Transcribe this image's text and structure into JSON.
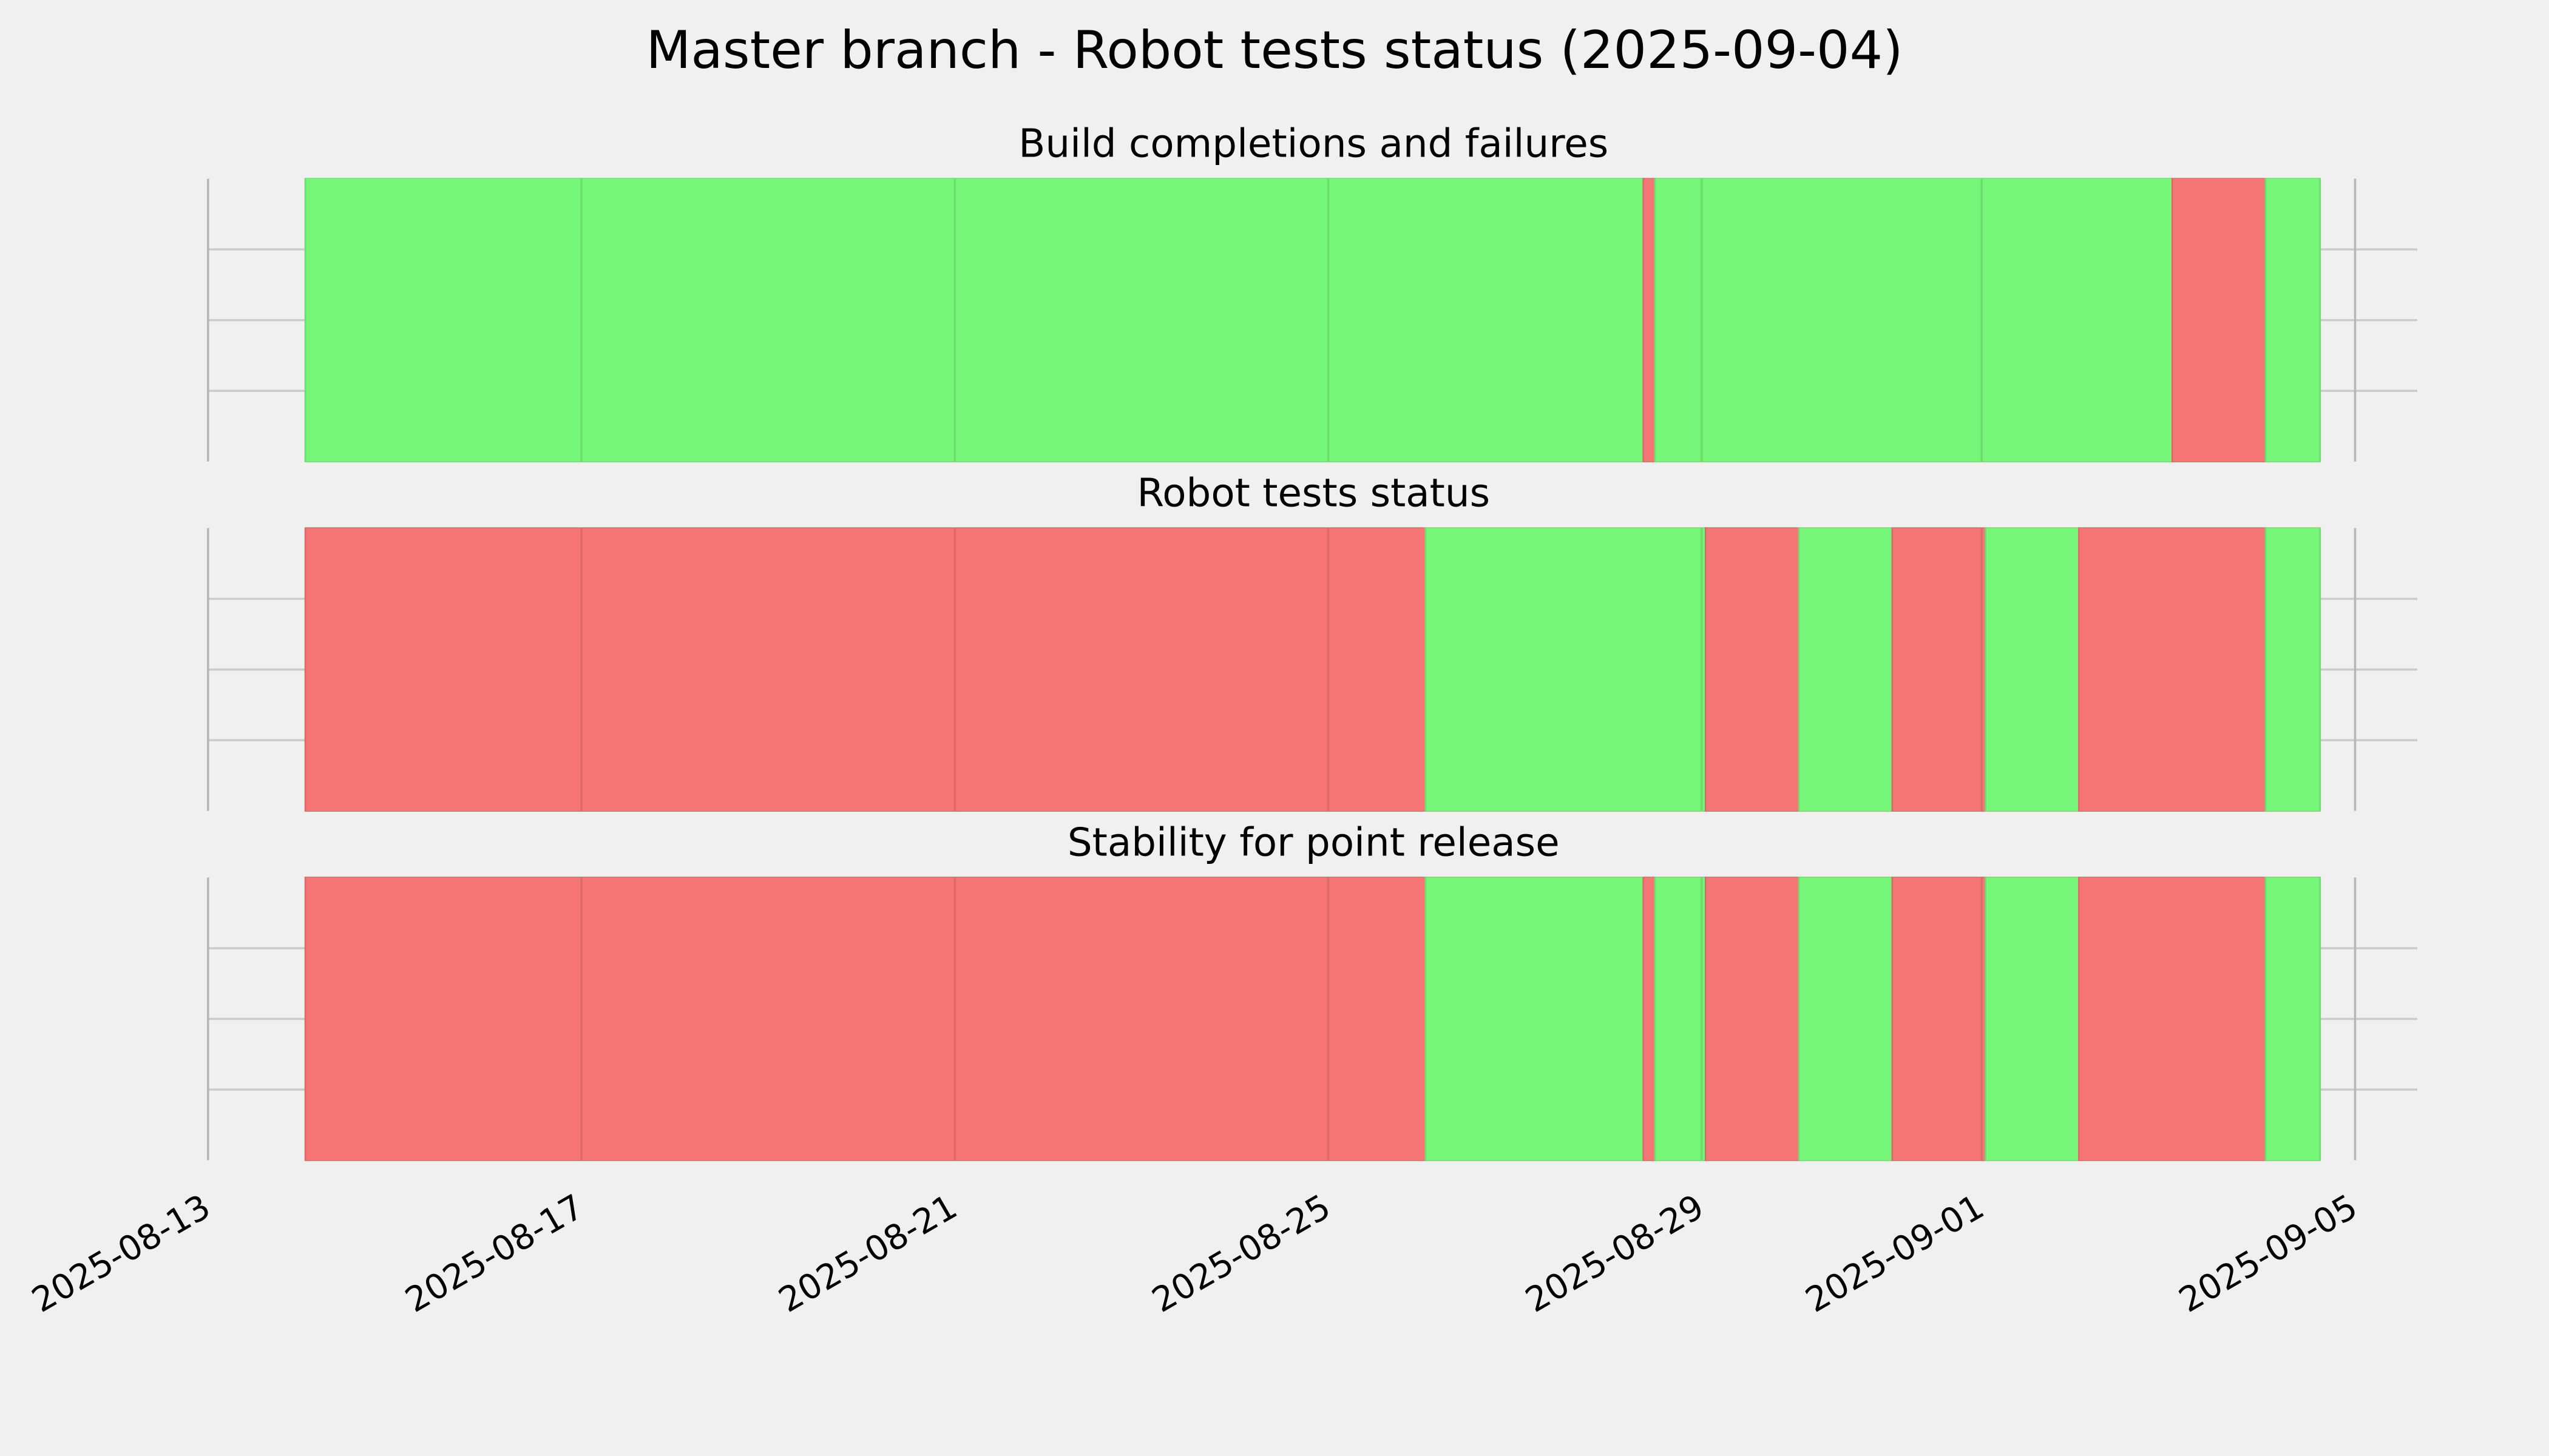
{
  "title": "Master branch - Robot tests status (2025-09-04)",
  "chart_data": [
    {
      "type": "timeline",
      "title": "Build completions and failures",
      "xlim": [
        "2025-08-13 00:00",
        "2025-09-05 16:00"
      ],
      "xticks": [
        "2025-08-13",
        "2025-08-17",
        "2025-08-21",
        "2025-08-25",
        "2025-08-29",
        "2025-09-01",
        "2025-09-05"
      ],
      "ylim": [
        0,
        1
      ],
      "yticks": [
        0.25,
        0.5,
        0.75
      ],
      "grid": true,
      "segments": [
        {
          "start": "2025-08-14 01:00",
          "end": "2025-08-28 09:00",
          "color": "#76f77a"
        },
        {
          "start": "2025-08-28 09:00",
          "end": "2025-08-28 12:00",
          "color": "#f67676"
        },
        {
          "start": "2025-08-28 12:00",
          "end": "2025-09-03 01:00",
          "color": "#76f77a"
        },
        {
          "start": "2025-09-03 01:00",
          "end": "2025-09-04 01:00",
          "color": "#f67676"
        },
        {
          "start": "2025-09-04 01:00",
          "end": "2025-09-04 15:00",
          "color": "#76f77a"
        }
      ]
    },
    {
      "type": "timeline",
      "title": "Robot tests status",
      "xlim": [
        "2025-08-13 00:00",
        "2025-09-05 16:00"
      ],
      "xticks": [
        "2025-08-13",
        "2025-08-17",
        "2025-08-21",
        "2025-08-25",
        "2025-08-29",
        "2025-09-01",
        "2025-09-05"
      ],
      "ylim": [
        0,
        1
      ],
      "yticks": [
        0.25,
        0.5,
        0.75
      ],
      "grid": true,
      "segments": [
        {
          "start": "2025-08-14 01:00",
          "end": "2025-08-26 01:00",
          "color": "#f67676"
        },
        {
          "start": "2025-08-26 01:00",
          "end": "2025-08-29 01:00",
          "color": "#76f77a"
        },
        {
          "start": "2025-08-29 01:00",
          "end": "2025-08-30 01:00",
          "color": "#f67676"
        },
        {
          "start": "2025-08-30 01:00",
          "end": "2025-08-31 01:00",
          "color": "#76f77a"
        },
        {
          "start": "2025-08-31 01:00",
          "end": "2025-09-01 01:00",
          "color": "#f67676"
        },
        {
          "start": "2025-09-01 01:00",
          "end": "2025-09-02 01:00",
          "color": "#76f77a"
        },
        {
          "start": "2025-09-02 01:00",
          "end": "2025-09-04 01:00",
          "color": "#f67676"
        },
        {
          "start": "2025-09-04 01:00",
          "end": "2025-09-04 15:00",
          "color": "#76f77a"
        }
      ]
    },
    {
      "type": "timeline",
      "title": "Stability for point release",
      "xlim": [
        "2025-08-13 00:00",
        "2025-09-05 16:00"
      ],
      "xticks": [
        "2025-08-13",
        "2025-08-17",
        "2025-08-21",
        "2025-08-25",
        "2025-08-29",
        "2025-09-01",
        "2025-09-05"
      ],
      "ylim": [
        0,
        1
      ],
      "yticks": [
        0.25,
        0.5,
        0.75
      ],
      "grid": true,
      "segments": [
        {
          "start": "2025-08-14 01:00",
          "end": "2025-08-26 01:00",
          "color": "#f67676"
        },
        {
          "start": "2025-08-26 01:00",
          "end": "2025-08-28 09:00",
          "color": "#76f77a"
        },
        {
          "start": "2025-08-28 09:00",
          "end": "2025-08-28 12:00",
          "color": "#f67676"
        },
        {
          "start": "2025-08-28 12:00",
          "end": "2025-08-29 01:00",
          "color": "#76f77a"
        },
        {
          "start": "2025-08-29 01:00",
          "end": "2025-08-30 01:00",
          "color": "#f67676"
        },
        {
          "start": "2025-08-30 01:00",
          "end": "2025-08-31 01:00",
          "color": "#76f77a"
        },
        {
          "start": "2025-08-31 01:00",
          "end": "2025-09-01 01:00",
          "color": "#f67676"
        },
        {
          "start": "2025-09-01 01:00",
          "end": "2025-09-02 01:00",
          "color": "#76f77a"
        },
        {
          "start": "2025-09-02 01:00",
          "end": "2025-09-04 01:00",
          "color": "#f67676"
        },
        {
          "start": "2025-09-04 01:00",
          "end": "2025-09-04 15:00",
          "color": "#76f77a"
        }
      ]
    }
  ]
}
